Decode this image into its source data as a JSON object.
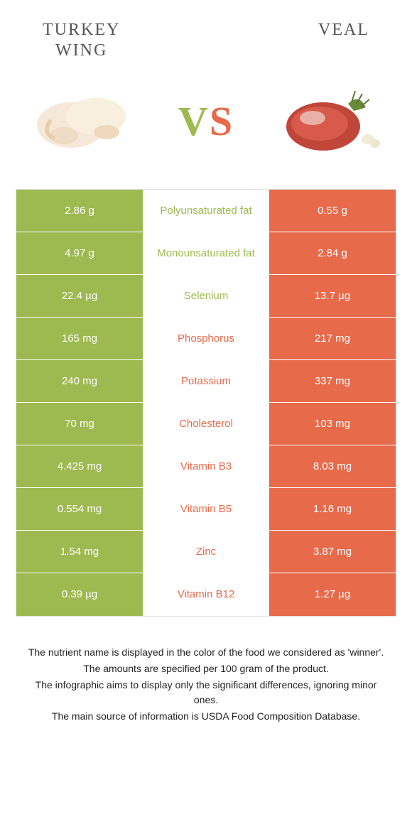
{
  "colors": {
    "left": "#9cba4f",
    "right": "#e76a4b",
    "background": "#ffffff",
    "text": "#333333"
  },
  "header": {
    "left_title": "TURKEY\nWING",
    "right_title": "VEAL",
    "vs_v": "V",
    "vs_s": "S"
  },
  "table": {
    "rows": [
      {
        "left": "2.86 g",
        "label": "Polyunsaturated fat",
        "right": "0.55 g",
        "winner": "left"
      },
      {
        "left": "4.97 g",
        "label": "Monounsaturated fat",
        "right": "2.84 g",
        "winner": "left"
      },
      {
        "left": "22.4 µg",
        "label": "Selenium",
        "right": "13.7 µg",
        "winner": "left"
      },
      {
        "left": "165 mg",
        "label": "Phosphorus",
        "right": "217 mg",
        "winner": "right"
      },
      {
        "left": "240 mg",
        "label": "Potassium",
        "right": "337 mg",
        "winner": "right"
      },
      {
        "left": "70 mg",
        "label": "Cholesterol",
        "right": "103 mg",
        "winner": "right"
      },
      {
        "left": "4.425 mg",
        "label": "Vitamin B3",
        "right": "8.03 mg",
        "winner": "right"
      },
      {
        "left": "0.554 mg",
        "label": "Vitamin B5",
        "right": "1.16 mg",
        "winner": "right"
      },
      {
        "left": "1.54 mg",
        "label": "Zinc",
        "right": "3.87 mg",
        "winner": "right"
      },
      {
        "left": "0.39 µg",
        "label": "Vitamin B12",
        "right": "1.27 µg",
        "winner": "right"
      }
    ]
  },
  "footer": {
    "line1": "The nutrient name is displayed in the color of the food we considered as 'winner'.",
    "line2": "The amounts are specified per 100 gram of the product.",
    "line3": "The infographic aims to display only the significant differences, ignoring minor ones.",
    "line4": "The main source of information is USDA Food Composition Database."
  }
}
